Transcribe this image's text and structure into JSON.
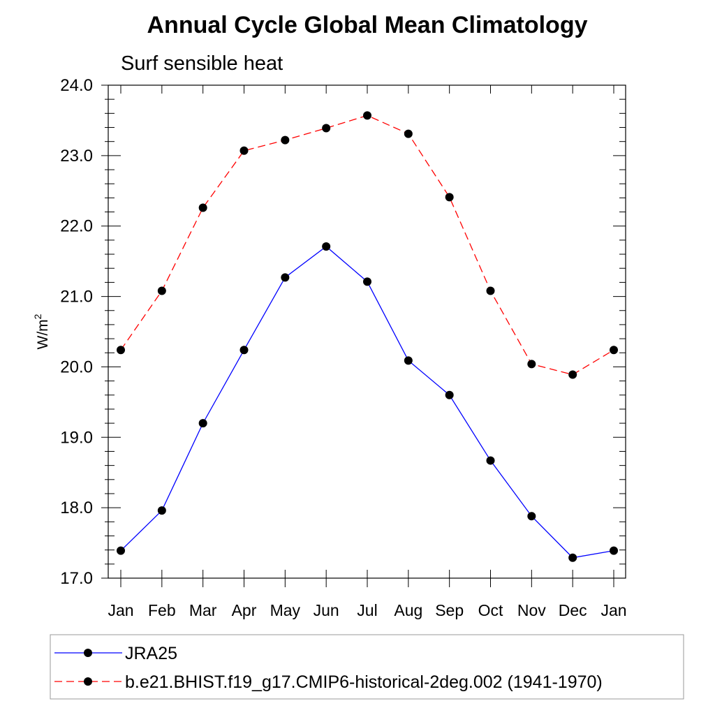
{
  "chart_data": {
    "type": "line",
    "title": "Annual Cycle Global Mean Climatology",
    "subtitle": "Surf sensible heat",
    "ylabel": "W/m",
    "ylabel_superscript": "2",
    "categories": [
      "Jan",
      "Feb",
      "Mar",
      "Apr",
      "May",
      "Jun",
      "Jul",
      "Aug",
      "Sep",
      "Oct",
      "Nov",
      "Dec",
      "Jan"
    ],
    "ylim": [
      17.0,
      24.0
    ],
    "yticks": [
      "17.0",
      "18.0",
      "19.0",
      "20.0",
      "21.0",
      "22.0",
      "23.0",
      "24.0"
    ],
    "grid": false,
    "legend_position": "bottom",
    "series": [
      {
        "name": "JRA25",
        "color": "#0000ff",
        "line_style": "solid",
        "values": [
          17.39,
          17.96,
          19.2,
          20.24,
          21.27,
          21.71,
          21.21,
          20.09,
          19.6,
          18.67,
          17.88,
          17.29,
          17.39
        ]
      },
      {
        "name": "b.e21.BHIST.f19_g17.CMIP6-historical-2deg.002 (1941-1970)",
        "color": "#ff0000",
        "line_style": "dashed",
        "values": [
          20.24,
          21.08,
          22.26,
          23.07,
          23.22,
          23.39,
          23.57,
          23.31,
          22.41,
          21.08,
          20.04,
          19.89,
          20.24
        ]
      }
    ]
  }
}
